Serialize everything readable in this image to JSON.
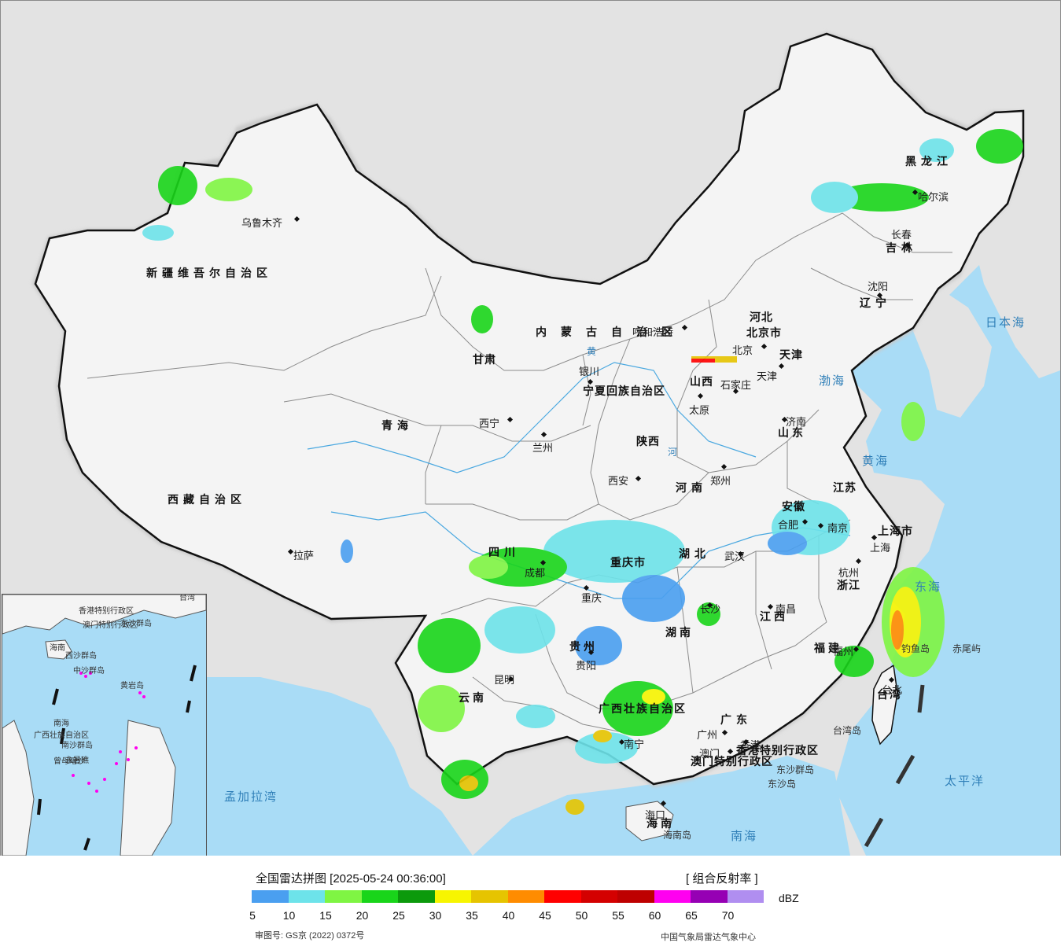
{
  "map": {
    "provinces": [
      {
        "name": "新疆维吾尔自治区"
      },
      {
        "name": "西藏自治区"
      },
      {
        "name": "青海"
      },
      {
        "name": "甘肃"
      },
      {
        "name": "内蒙古自治区"
      },
      {
        "name": "黑龙江"
      },
      {
        "name": "吉林"
      },
      {
        "name": "辽宁"
      },
      {
        "name": "河北"
      },
      {
        "name": "山西"
      },
      {
        "name": "山东"
      },
      {
        "name": "陕西"
      },
      {
        "name": "河南"
      },
      {
        "name": "四川"
      },
      {
        "name": "重庆市"
      },
      {
        "name": "湖北"
      },
      {
        "name": "安徽"
      },
      {
        "name": "江苏"
      },
      {
        "name": "上海市"
      },
      {
        "name": "浙江"
      },
      {
        "name": "江西"
      },
      {
        "name": "湖南"
      },
      {
        "name": "贵州"
      },
      {
        "name": "云南"
      },
      {
        "name": "广西壮族自治区"
      },
      {
        "name": "广东"
      },
      {
        "name": "福建"
      },
      {
        "name": "台湾"
      },
      {
        "name": "海南"
      },
      {
        "name": "北京市"
      },
      {
        "name": "天津"
      },
      {
        "name": "宁夏回族自治区"
      },
      {
        "name": "香港特别行政区"
      },
      {
        "name": "澳门特别行政区"
      }
    ],
    "cities": [
      {
        "name": "乌鲁木齐"
      },
      {
        "name": "拉萨"
      },
      {
        "name": "西宁"
      },
      {
        "name": "兰州"
      },
      {
        "name": "银川"
      },
      {
        "name": "呼和浩特"
      },
      {
        "name": "哈尔滨"
      },
      {
        "name": "长春"
      },
      {
        "name": "沈阳"
      },
      {
        "name": "北京"
      },
      {
        "name": "天津"
      },
      {
        "name": "石家庄"
      },
      {
        "name": "太原"
      },
      {
        "name": "济南"
      },
      {
        "name": "西安"
      },
      {
        "name": "郑州"
      },
      {
        "name": "合肥"
      },
      {
        "name": "南京"
      },
      {
        "name": "上海"
      },
      {
        "name": "杭州"
      },
      {
        "name": "武汉"
      },
      {
        "name": "成都"
      },
      {
        "name": "重庆"
      },
      {
        "name": "长沙"
      },
      {
        "name": "南昌"
      },
      {
        "name": "福州"
      },
      {
        "name": "台北"
      },
      {
        "name": "贵阳"
      },
      {
        "name": "昆明"
      },
      {
        "name": "南宁"
      },
      {
        "name": "广州"
      },
      {
        "name": "澳门"
      },
      {
        "name": "香港"
      },
      {
        "name": "海口"
      }
    ],
    "seas": [
      {
        "name": "日本海"
      },
      {
        "name": "渤海"
      },
      {
        "name": "黄海"
      },
      {
        "name": "东海"
      },
      {
        "name": "太平洋"
      },
      {
        "name": "南海"
      },
      {
        "name": "孟加拉湾"
      }
    ],
    "islands": [
      {
        "name": "钓鱼岛"
      },
      {
        "name": "赤尾屿"
      },
      {
        "name": "台湾岛"
      },
      {
        "name": "东沙群岛"
      },
      {
        "name": "东沙岛"
      },
      {
        "name": "海南岛"
      }
    ],
    "rivers": [
      {
        "name": "黄"
      },
      {
        "name": "河"
      }
    ],
    "inset_labels": [
      {
        "name": "香港特别行政区"
      },
      {
        "name": "澳门特别行政区"
      },
      {
        "name": "台湾"
      },
      {
        "name": "东沙群岛"
      },
      {
        "name": "海南"
      },
      {
        "name": "西沙群岛"
      },
      {
        "name": "中沙群岛"
      },
      {
        "name": "黄岩岛"
      },
      {
        "name": "南海"
      },
      {
        "name": "南沙群岛"
      },
      {
        "name": "曾母暗沙"
      },
      {
        "name": "永暑礁"
      },
      {
        "name": "广西壮族自治区"
      }
    ]
  },
  "legend": {
    "title": "全国雷达拼图 [2025-05-24 00:36:00]",
    "product": "[ 组合反射率 ]",
    "unit": "dBZ",
    "colors": [
      "#4a9ff0",
      "#6de3ea",
      "#7ff543",
      "#19d51a",
      "#0c9a0c",
      "#f7f500",
      "#e6c400",
      "#ff8c00",
      "#ff0000",
      "#d40000",
      "#be0000",
      "#ff00f0",
      "#9600b4",
      "#b08ef0"
    ],
    "ticks": [
      "5",
      "10",
      "15",
      "20",
      "25",
      "30",
      "35",
      "40",
      "45",
      "50",
      "55",
      "60",
      "65",
      "70"
    ],
    "approval": "审图号: GS京 (2022) 0372号",
    "credit": "中国气象局雷达气象中心"
  },
  "colors": {
    "sea": "#a9dcf6",
    "land": "#f4f4f4",
    "outside": "#e3e3e3",
    "border": "#111111",
    "province_border": "#8c8c8c"
  }
}
